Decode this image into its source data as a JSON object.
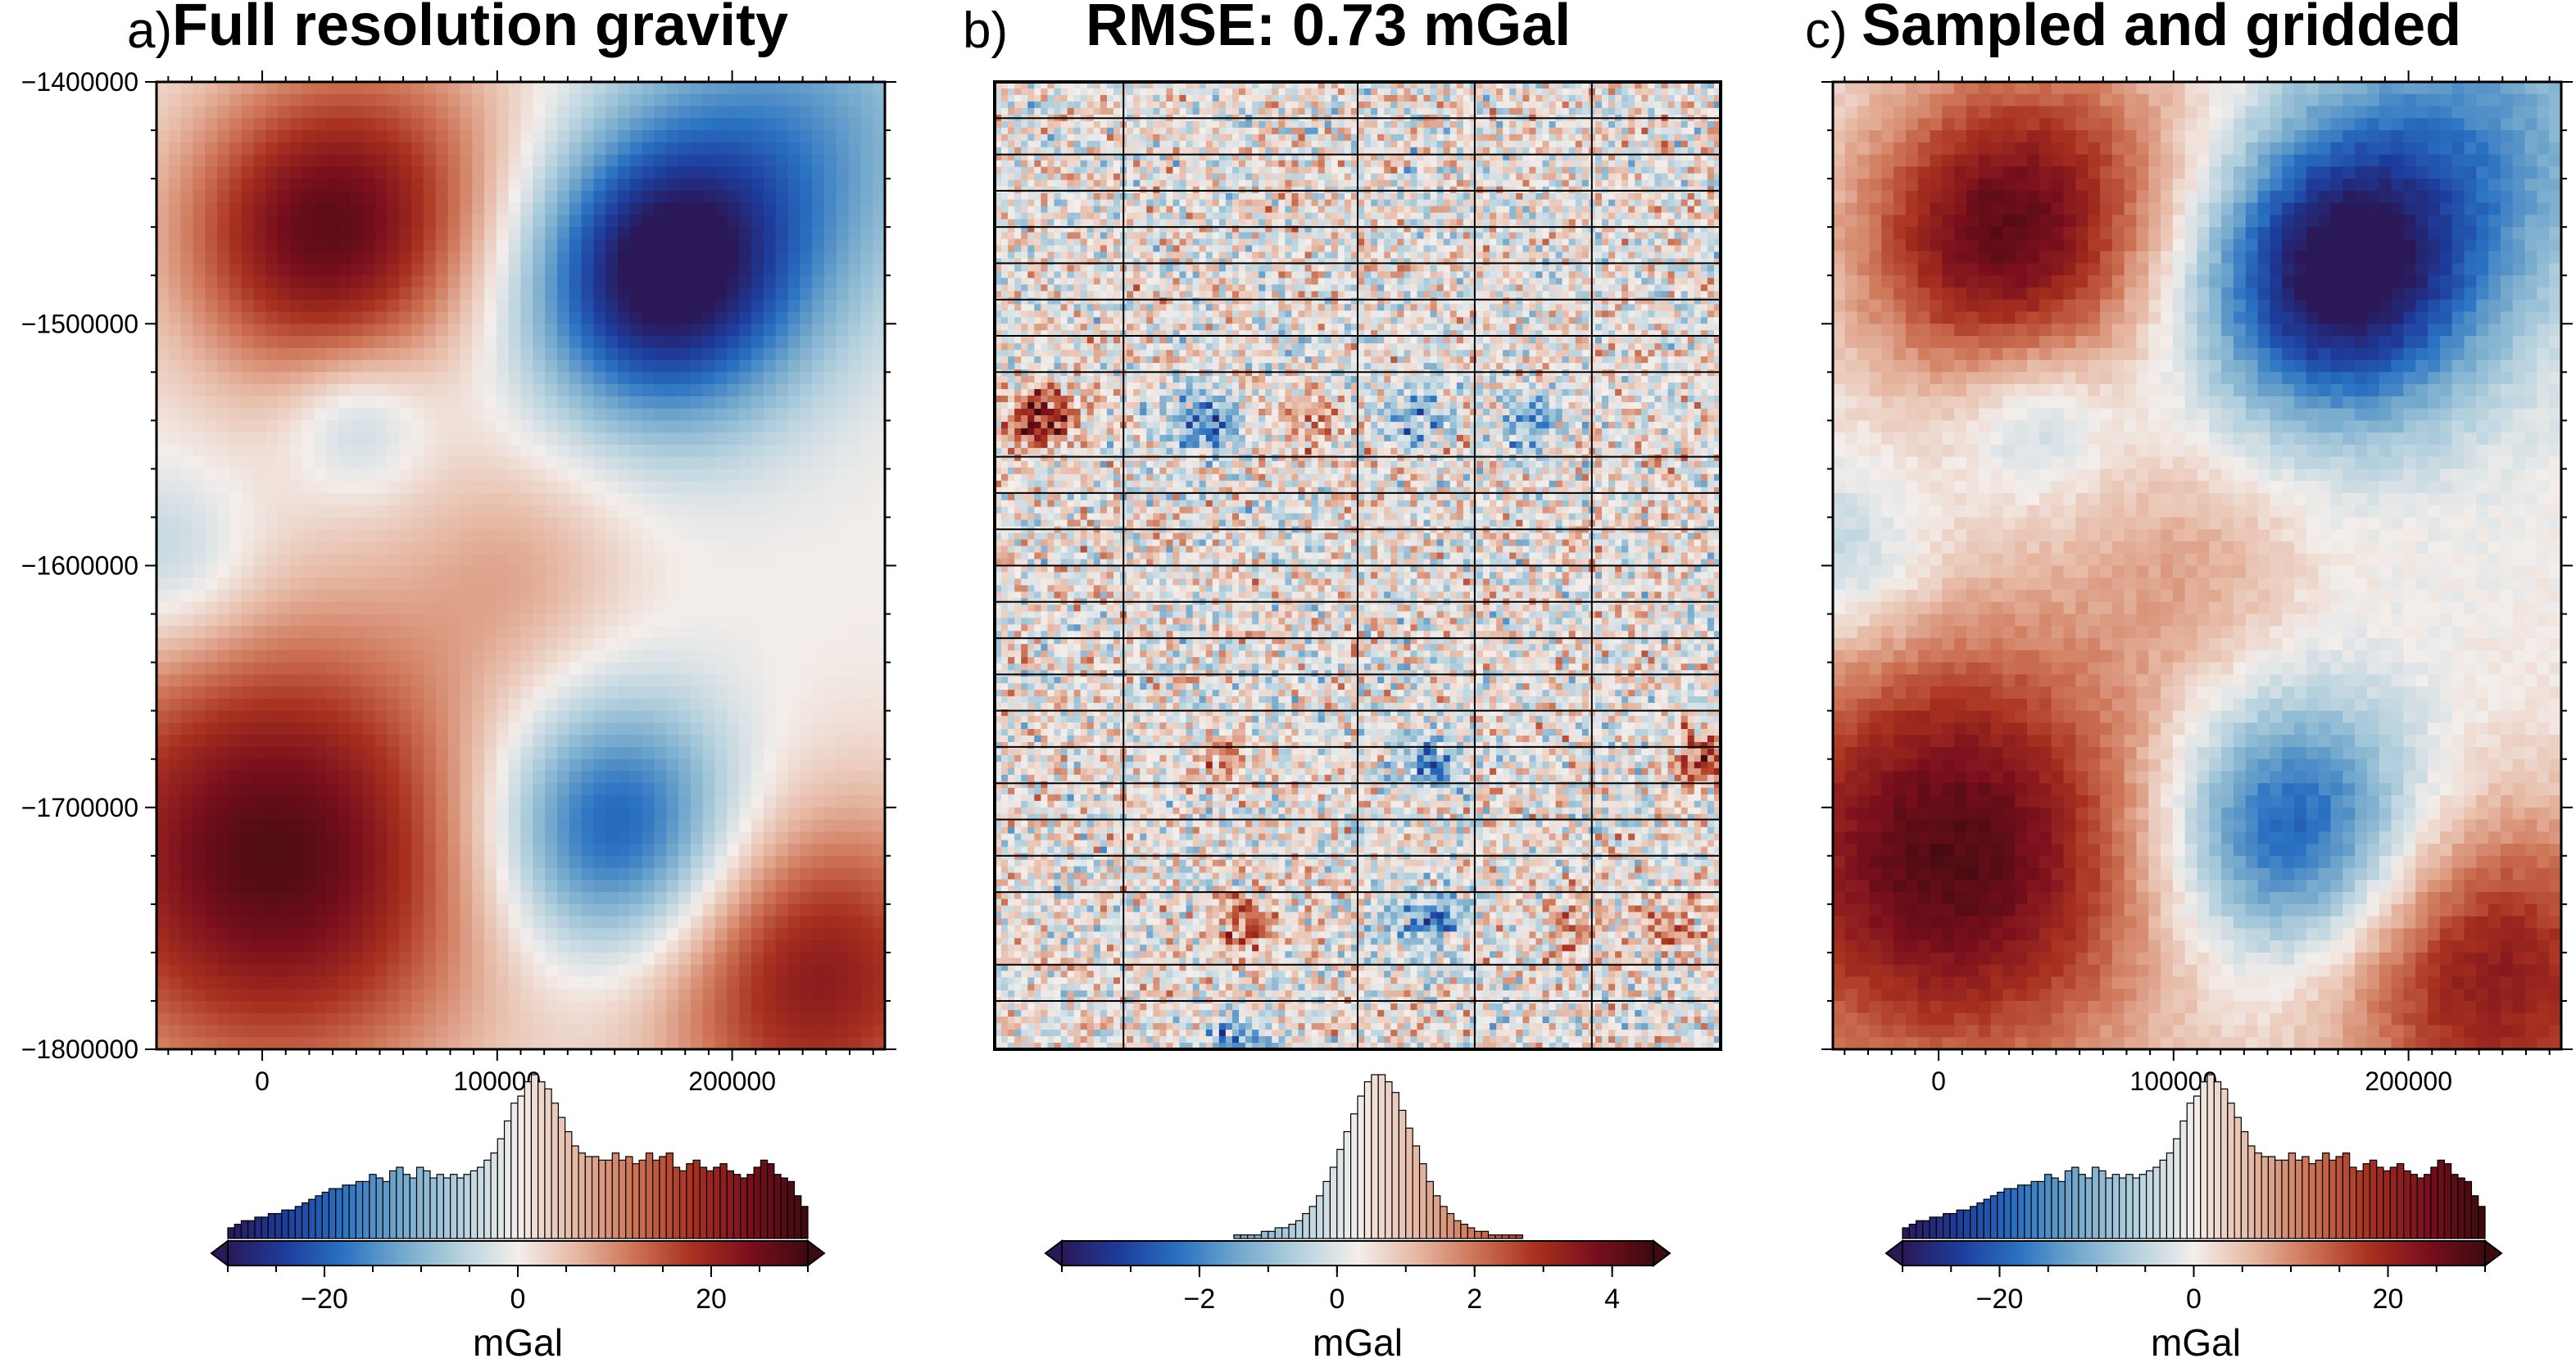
{
  "colors": {
    "colormap": [
      "#2a1858",
      "#1d3d9c",
      "#2a72c2",
      "#74a9cc",
      "#b5d1de",
      "#f3eeeb",
      "#e6b8a3",
      "#cd7355",
      "#a8311f",
      "#7a0f1d",
      "#3d0a0e"
    ],
    "grid_line": "#000000",
    "histogram_edge": "#000000"
  },
  "chart_data": [
    {
      "type": "heatmap",
      "panel_label": "a)",
      "title": "Full resolution gravity",
      "xlim": [
        -45000,
        265000
      ],
      "ylim": [
        -1800000,
        -1400000
      ],
      "x_ticks": [
        0,
        100000,
        200000
      ],
      "x_tick_labels": [
        "0",
        "100000",
        "200000"
      ],
      "y_ticks": [
        -1400000,
        -1500000,
        -1600000,
        -1700000,
        -1800000
      ],
      "y_tick_labels": [
        "−1400000",
        "−1500000",
        "−1600000",
        "−1700000",
        "−1800000"
      ],
      "colorbar": {
        "range": [
          -30,
          30
        ],
        "ticks": [
          -20,
          0,
          20
        ],
        "tick_labels": [
          "−20",
          "0",
          "20"
        ],
        "label": "mGal",
        "histogram": [
          3,
          4,
          5,
          5,
          6,
          6,
          7,
          7,
          8,
          8,
          9,
          10,
          11,
          12,
          13,
          14,
          14,
          15,
          15,
          16,
          16,
          18,
          17,
          16,
          19,
          20,
          18,
          17,
          20,
          19,
          17,
          18,
          17,
          18,
          17,
          18,
          19,
          20,
          22,
          24,
          28,
          33,
          38,
          40,
          44,
          46,
          44,
          42,
          38,
          34,
          30,
          26,
          24,
          23,
          23,
          22,
          22,
          24,
          22,
          23,
          21,
          22,
          24,
          22,
          23,
          24,
          20,
          19,
          21,
          22,
          20,
          19,
          20,
          21,
          19,
          18,
          17,
          18,
          20,
          22,
          21,
          18,
          17,
          16,
          12,
          9
        ]
      },
      "field_centers": [
        {
          "x": 5000,
          "y": -1720000,
          "amp": 28,
          "r": 95000
        },
        {
          "x": 20000,
          "y": -1465000,
          "amp": 20,
          "r": 60000
        },
        {
          "x": 60000,
          "y": -1440000,
          "amp": 10,
          "r": 70000
        },
        {
          "x": 170000,
          "y": -1480000,
          "amp": -32,
          "r": 60000
        },
        {
          "x": 230000,
          "y": -1420000,
          "amp": -12,
          "r": 70000
        },
        {
          "x": 150000,
          "y": -1710000,
          "amp": -24,
          "r": 55000
        },
        {
          "x": 235000,
          "y": -1770000,
          "amp": 22,
          "r": 70000
        },
        {
          "x": 40000,
          "y": -1540000,
          "amp": -8,
          "r": 30000
        },
        {
          "x": -40000,
          "y": -1600000,
          "amp": -8,
          "r": 40000
        },
        {
          "x": 110000,
          "y": -1600000,
          "amp": 6,
          "r": 50000
        }
      ]
    },
    {
      "type": "heatmap",
      "panel_label": "b)",
      "title": "RMSE: 0.73 mGal",
      "xlim": [
        -45000,
        265000
      ],
      "ylim": [
        -1800000,
        -1400000
      ],
      "colorbar": {
        "range": [
          -4,
          4.6
        ],
        "ticks": [
          -2,
          0,
          2,
          4
        ],
        "tick_labels": [
          "−2",
          "0",
          "2",
          "4"
        ],
        "label": "mGal",
        "histogram": [
          0,
          0,
          0,
          0,
          0,
          0,
          0,
          0,
          0,
          0,
          0,
          0,
          0,
          0,
          0,
          0,
          0,
          0,
          0,
          0,
          0,
          0,
          0,
          0,
          0,
          1,
          1,
          1,
          1,
          2,
          2,
          3,
          3,
          4,
          5,
          7,
          9,
          12,
          16,
          20,
          25,
          30,
          35,
          40,
          44,
          46,
          46,
          44,
          41,
          36,
          31,
          26,
          21,
          16,
          12,
          9,
          7,
          5,
          4,
          3,
          2,
          2,
          1,
          1,
          1,
          1,
          1,
          0,
          0,
          0,
          0,
          0,
          0,
          0,
          0,
          0,
          0,
          0,
          0,
          0,
          0,
          0,
          0,
          0,
          0,
          0
        ]
      },
      "grid_x": [
        10000,
        110000,
        160000,
        210000
      ],
      "grid_y": [
        -1415000,
        -1430000,
        -1445000,
        -1460000,
        -1475000,
        -1490000,
        -1505000,
        -1520000,
        -1555000,
        -1570000,
        -1585000,
        -1600000,
        -1615000,
        -1630000,
        -1645000,
        -1660000,
        -1675000,
        -1690000,
        -1705000,
        -1720000,
        -1735000,
        -1765000,
        -1780000
      ],
      "blobs": [
        {
          "x": -25000,
          "y": -1540000,
          "amp": 3.0
        },
        {
          "x": 45000,
          "y": -1540000,
          "amp": -2.5
        },
        {
          "x": 90000,
          "y": -1540000,
          "amp": 1.2
        },
        {
          "x": 135000,
          "y": -1538000,
          "amp": -1.5
        },
        {
          "x": 185000,
          "y": -1542000,
          "amp": -1.8
        },
        {
          "x": 50000,
          "y": -1680000,
          "amp": 1.0
        },
        {
          "x": 140000,
          "y": -1680000,
          "amp": -2.0
        },
        {
          "x": 260000,
          "y": -1680000,
          "amp": 2.5
        },
        {
          "x": 60000,
          "y": -1750000,
          "amp": 1.8
        },
        {
          "x": 140000,
          "y": -1748000,
          "amp": -2.5
        },
        {
          "x": 200000,
          "y": -1750000,
          "amp": 1.2
        },
        {
          "x": 245000,
          "y": -1750000,
          "amp": 1.5
        },
        {
          "x": 60000,
          "y": -1798000,
          "amp": -2.0
        }
      ]
    },
    {
      "type": "heatmap",
      "panel_label": "c)",
      "title": "Sampled and gridded",
      "xlim": [
        -45000,
        265000
      ],
      "ylim": [
        -1800000,
        -1400000
      ],
      "x_ticks": [
        0,
        100000,
        200000
      ],
      "x_tick_labels": [
        "0",
        "100000",
        "200000"
      ],
      "colorbar": {
        "range": [
          -30,
          30
        ],
        "ticks": [
          -20,
          0,
          20
        ],
        "tick_labels": [
          "−20",
          "0",
          "20"
        ],
        "label": "mGal",
        "histogram": [
          3,
          4,
          5,
          5,
          6,
          6,
          7,
          7,
          8,
          8,
          9,
          10,
          11,
          12,
          13,
          14,
          14,
          15,
          15,
          16,
          16,
          18,
          17,
          16,
          19,
          20,
          18,
          17,
          20,
          19,
          17,
          18,
          17,
          18,
          17,
          18,
          19,
          20,
          22,
          24,
          28,
          33,
          38,
          40,
          44,
          46,
          44,
          42,
          38,
          34,
          30,
          26,
          24,
          23,
          23,
          22,
          22,
          24,
          22,
          23,
          21,
          22,
          24,
          22,
          23,
          24,
          20,
          19,
          21,
          22,
          20,
          19,
          20,
          21,
          19,
          18,
          17,
          18,
          20,
          22,
          21,
          18,
          17,
          16,
          12,
          9
        ]
      }
    }
  ]
}
